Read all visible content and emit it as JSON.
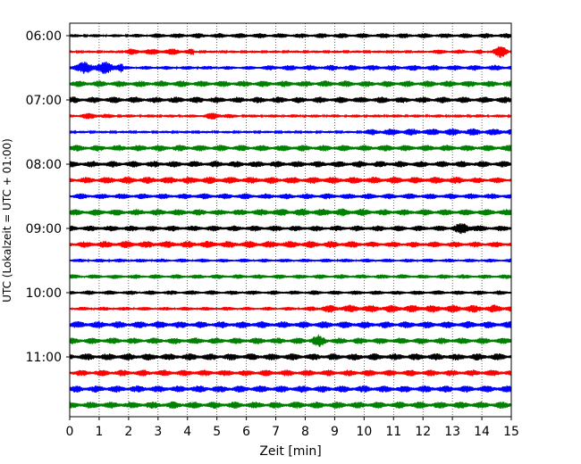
{
  "chart_data": {
    "type": "line",
    "title": "",
    "xlabel": "Zeit  [min]",
    "ylabel": "UTC (Lokalzeit = UTC + 01:00)",
    "xlim": [
      0,
      15
    ],
    "x_ticks": [
      "0",
      "1",
      "2",
      "3",
      "4",
      "5",
      "6",
      "7",
      "8",
      "9",
      "10",
      "11",
      "12",
      "13",
      "14",
      "15"
    ],
    "y_ticks": [
      "06:00",
      "07:00",
      "08:00",
      "09:00",
      "10:00",
      "11:00"
    ],
    "grid": "vertical dotted",
    "trace_interval_min": 15,
    "colors": [
      "#000000",
      "#ff0000",
      "#0000ff",
      "#008000"
    ],
    "series": [
      {
        "name": "06:00",
        "color": "#000000",
        "amplitude": 0.25,
        "events": [
          {
            "start": 2.0,
            "end": 15,
            "amp": 0.4
          }
        ]
      },
      {
        "name": "06:15",
        "color": "#ff0000",
        "amplitude": 0.2,
        "events": [
          {
            "start": 1.8,
            "end": 4.2,
            "amp": 0.5
          },
          {
            "start": 12.0,
            "end": 14.0,
            "amp": 0.35
          },
          {
            "start": 14.2,
            "end": 15,
            "amp": 0.95
          }
        ]
      },
      {
        "name": "06:30",
        "color": "#0000ff",
        "amplitude": 0.3,
        "events": [
          {
            "start": 0.0,
            "end": 1.8,
            "amp": 0.95
          },
          {
            "start": 6.2,
            "end": 15,
            "amp": 0.45
          }
        ]
      },
      {
        "name": "06:45",
        "color": "#008000",
        "amplitude": 0.5,
        "events": []
      },
      {
        "name": "07:00",
        "color": "#000000",
        "amplitude": 0.5,
        "events": []
      },
      {
        "name": "07:15",
        "color": "#ff0000",
        "amplitude": 0.25,
        "events": [
          {
            "start": 0.0,
            "end": 1.5,
            "amp": 0.5
          },
          {
            "start": 4.3,
            "end": 5.6,
            "amp": 0.55
          }
        ]
      },
      {
        "name": "07:30",
        "color": "#0000ff",
        "amplitude": 0.2,
        "events": [
          {
            "start": 9.8,
            "end": 15,
            "amp": 0.55
          }
        ]
      },
      {
        "name": "07:45",
        "color": "#008000",
        "amplitude": 0.5,
        "events": []
      },
      {
        "name": "08:00",
        "color": "#000000",
        "amplitude": 0.5,
        "events": []
      },
      {
        "name": "08:15",
        "color": "#ff0000",
        "amplitude": 0.45,
        "events": [
          {
            "start": 0.0,
            "end": 13.5,
            "amp": 0.55
          }
        ]
      },
      {
        "name": "08:30",
        "color": "#0000ff",
        "amplitude": 0.45,
        "events": []
      },
      {
        "name": "08:45",
        "color": "#008000",
        "amplitude": 0.5,
        "events": [
          {
            "start": 6.5,
            "end": 10.0,
            "amp": 0.6
          }
        ]
      },
      {
        "name": "09:00",
        "color": "#000000",
        "amplitude": 0.45,
        "events": [
          {
            "start": 12.9,
            "end": 13.9,
            "amp": 0.95
          }
        ]
      },
      {
        "name": "09:15",
        "color": "#ff0000",
        "amplitude": 0.45,
        "events": [
          {
            "start": 0.0,
            "end": 9.9,
            "amp": 0.55
          }
        ]
      },
      {
        "name": "09:30",
        "color": "#0000ff",
        "amplitude": 0.3,
        "events": []
      },
      {
        "name": "09:45",
        "color": "#008000",
        "amplitude": 0.35,
        "events": []
      },
      {
        "name": "10:00",
        "color": "#000000",
        "amplitude": 0.35,
        "events": []
      },
      {
        "name": "10:15",
        "color": "#ff0000",
        "amplitude": 0.3,
        "events": [
          {
            "start": 8.0,
            "end": 15,
            "amp": 0.6
          }
        ]
      },
      {
        "name": "10:30",
        "color": "#0000ff",
        "amplitude": 0.55,
        "events": []
      },
      {
        "name": "10:45",
        "color": "#008000",
        "amplitude": 0.5,
        "events": [
          {
            "start": 8.1,
            "end": 8.8,
            "amp": 0.95
          }
        ]
      },
      {
        "name": "11:00",
        "color": "#000000",
        "amplitude": 0.55,
        "events": []
      },
      {
        "name": "11:15",
        "color": "#ff0000",
        "amplitude": 0.5,
        "events": []
      },
      {
        "name": "11:30",
        "color": "#0000ff",
        "amplitude": 0.55,
        "events": []
      },
      {
        "name": "11:45",
        "color": "#008000",
        "amplitude": 0.55,
        "events": []
      }
    ]
  }
}
